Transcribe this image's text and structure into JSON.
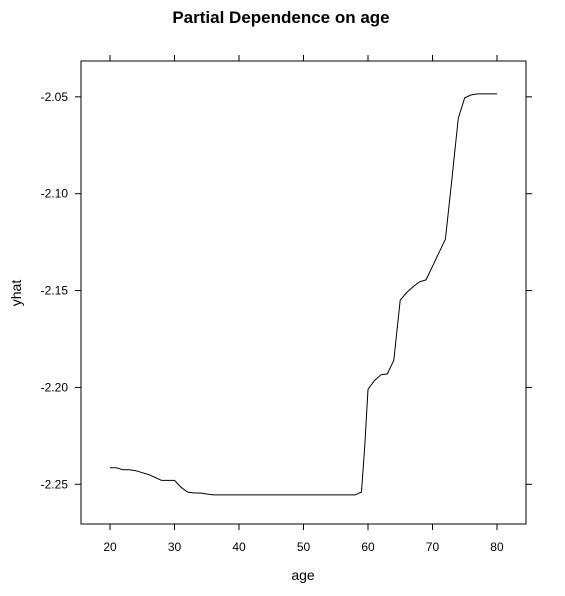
{
  "chart_data": {
    "type": "line",
    "title": "Partial Dependence on age",
    "xlabel": "age",
    "ylabel": "yhat",
    "xlim": [
      15.5,
      84.5
    ],
    "ylim": [
      -2.2705,
      -2.0315
    ],
    "x_ticks": [
      20,
      30,
      40,
      50,
      60,
      70,
      80
    ],
    "y_ticks": [
      -2.25,
      -2.2,
      -2.15,
      -2.1,
      -2.05
    ],
    "y_tick_labels": [
      "-2.25",
      "-2.20",
      "-2.15",
      "-2.10",
      "-2.05"
    ],
    "grid": false,
    "legend": "none",
    "line_color": "#000000",
    "series": [
      {
        "x": [
          20,
          21,
          22,
          23,
          24,
          25,
          26,
          27,
          28,
          29,
          30,
          31,
          32,
          33,
          34,
          35,
          36,
          37,
          38,
          40,
          45,
          50,
          55,
          58,
          59,
          59.5,
          60,
          61,
          62,
          63,
          64,
          65,
          66,
          67,
          68,
          69,
          70,
          71,
          72,
          73,
          74,
          75,
          76,
          77,
          78,
          79,
          80
        ],
        "y": [
          -2.2415,
          -2.2415,
          -2.2425,
          -2.2425,
          -2.243,
          -2.244,
          -2.245,
          -2.2465,
          -2.248,
          -2.248,
          -2.248,
          -2.2515,
          -2.254,
          -2.2545,
          -2.2545,
          -2.255,
          -2.2555,
          -2.2555,
          -2.2555,
          -2.2555,
          -2.2555,
          -2.2555,
          -2.2555,
          -2.2555,
          -2.254,
          -2.23,
          -2.201,
          -2.1965,
          -2.1935,
          -2.193,
          -2.186,
          -2.155,
          -2.151,
          -2.148,
          -2.1455,
          -2.1445,
          -2.1375,
          -2.1305,
          -2.1235,
          -2.093,
          -2.061,
          -2.0505,
          -2.049,
          -2.0485,
          -2.0485,
          -2.0485,
          -2.0485
        ]
      }
    ]
  }
}
